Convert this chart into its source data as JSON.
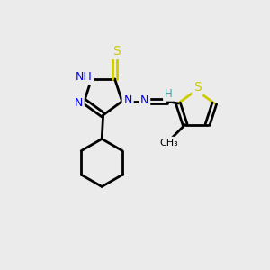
{
  "background_color": "#ebebeb",
  "atom_colors": {
    "N": "#0000ff",
    "S": "#cccc00",
    "C": "#000000",
    "H": "#4a9a9a"
  },
  "bond_color": "#000000",
  "bond_width": 2.0,
  "figsize": [
    3.0,
    3.0
  ],
  "dpi": 100
}
